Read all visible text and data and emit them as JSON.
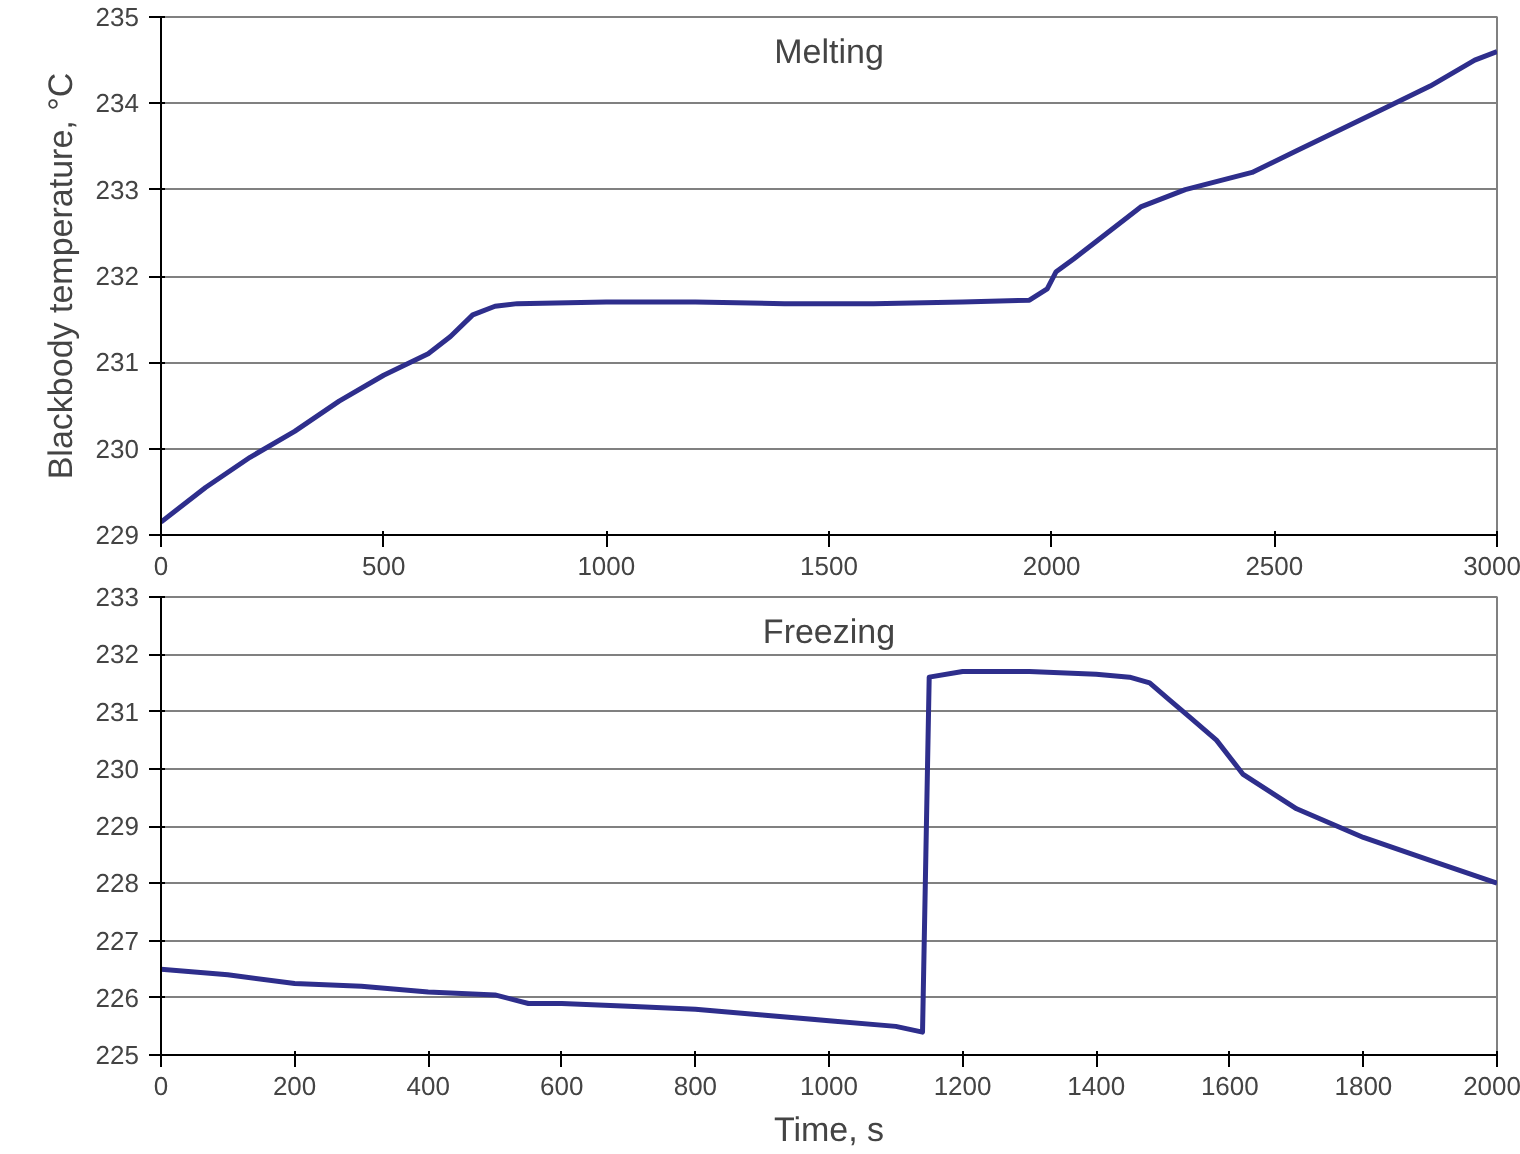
{
  "chart_data": [
    {
      "type": "line",
      "title": "Melting",
      "ylabel": "Blackbody temperature, °C",
      "x": [
        0,
        100,
        200,
        300,
        400,
        500,
        600,
        650,
        700,
        750,
        800,
        1000,
        1200,
        1400,
        1600,
        1800,
        1950,
        1990,
        2010,
        2050,
        2100,
        2200,
        2300,
        2450,
        2550,
        2650,
        2750,
        2850,
        2950,
        3000
      ],
      "series": [
        {
          "color": "#2e2e8c",
          "values": [
            229.15,
            229.55,
            229.9,
            230.2,
            230.55,
            230.85,
            231.1,
            231.3,
            231.55,
            231.65,
            231.68,
            231.7,
            231.7,
            231.68,
            231.68,
            231.7,
            231.72,
            231.85,
            232.05,
            232.2,
            232.4,
            232.8,
            233.0,
            233.2,
            233.45,
            233.7,
            233.95,
            234.2,
            234.5,
            234.6
          ]
        }
      ],
      "xlim": [
        0,
        3000
      ],
      "xticks": [
        0,
        500,
        1000,
        1500,
        2000,
        2500,
        3000
      ],
      "ylim": [
        229,
        235
      ],
      "yticks": [
        229,
        230,
        231,
        232,
        233,
        234,
        235
      ],
      "grid": "y",
      "line_style": "solid"
    },
    {
      "type": "line",
      "title": "Freezing",
      "xlabel": "Time, s",
      "x": [
        0,
        100,
        200,
        300,
        400,
        500,
        550,
        600,
        700,
        800,
        900,
        1000,
        1100,
        1140,
        1145,
        1150,
        1200,
        1300,
        1400,
        1450,
        1480,
        1510,
        1540,
        1580,
        1620,
        1660,
        1700,
        1800,
        1900,
        2000
      ],
      "series": [
        {
          "color": "#2e2e8c",
          "values": [
            226.5,
            226.4,
            226.25,
            226.2,
            226.1,
            226.05,
            225.9,
            225.9,
            225.85,
            225.8,
            225.7,
            225.6,
            225.5,
            225.4,
            228.5,
            231.6,
            231.7,
            231.7,
            231.65,
            231.6,
            231.5,
            231.2,
            230.9,
            230.5,
            229.9,
            229.6,
            229.3,
            228.8,
            228.4,
            228.0
          ]
        }
      ],
      "xlim": [
        0,
        2000
      ],
      "xticks": [
        0,
        200,
        400,
        600,
        800,
        1000,
        1200,
        1400,
        1600,
        1800,
        2000
      ],
      "ylim": [
        225,
        233
      ],
      "yticks": [
        225,
        226,
        227,
        228,
        229,
        230,
        231,
        232,
        233
      ],
      "grid": "y",
      "line_style": "solid"
    }
  ]
}
